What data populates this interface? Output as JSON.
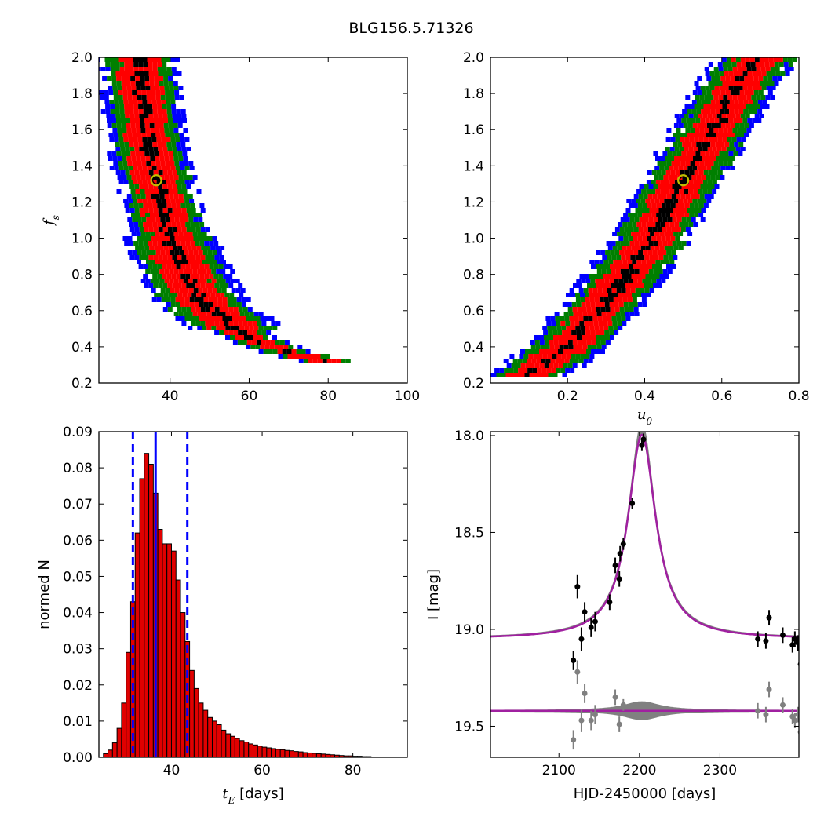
{
  "figure_title": "BLG156.5.71326",
  "colors": {
    "blue": "#0000ff",
    "green": "#007f00",
    "red": "#ff0000",
    "black": "#000000",
    "marker_edge": "#bfbf00",
    "bar_fill": "#e00000",
    "model": "#a020a0",
    "band": "#808080",
    "residual": "#808080"
  },
  "chart_data": [
    {
      "id": "fs_vs_tE",
      "type": "heatmap",
      "title": "",
      "xlabel": "",
      "ylabel": "f_s",
      "xlim": [
        22,
        100
      ],
      "ylim": [
        0.2,
        2.0
      ],
      "xticks": [
        40,
        60,
        80,
        100
      ],
      "yticks": [
        0.2,
        0.4,
        0.6,
        0.8,
        1.0,
        1.2,
        1.4,
        1.6,
        1.8,
        2.0
      ],
      "levels": [
        "blue",
        "green",
        "red",
        "black"
      ],
      "ridge": [
        [
          32,
          2.0
        ],
        [
          33,
          1.8
        ],
        [
          34,
          1.6
        ],
        [
          35.5,
          1.4
        ],
        [
          37,
          1.3
        ],
        [
          39,
          1.1
        ],
        [
          41,
          0.95
        ],
        [
          44,
          0.8
        ],
        [
          48,
          0.65
        ],
        [
          54,
          0.55
        ],
        [
          60,
          0.45
        ],
        [
          70,
          0.37
        ],
        [
          80,
          0.32
        ],
        [
          86,
          0.3
        ]
      ],
      "best_fit": {
        "x": 36.5,
        "y": 1.32
      }
    },
    {
      "id": "fs_vs_u0",
      "type": "heatmap",
      "title": "",
      "xlabel": "u_0",
      "ylabel": "",
      "xlim": [
        0.0,
        0.8
      ],
      "ylim": [
        0.2,
        2.0
      ],
      "xticks": [
        0.2,
        0.4,
        0.6,
        0.8
      ],
      "yticks": [
        0.2,
        0.4,
        0.6,
        0.8,
        1.0,
        1.2,
        1.4,
        1.6,
        1.8,
        2.0
      ],
      "levels": [
        "blue",
        "green",
        "red",
        "black"
      ],
      "ridge": [
        [
          0.08,
          0.22
        ],
        [
          0.14,
          0.3
        ],
        [
          0.2,
          0.4
        ],
        [
          0.26,
          0.55
        ],
        [
          0.32,
          0.7
        ],
        [
          0.38,
          0.88
        ],
        [
          0.43,
          1.05
        ],
        [
          0.47,
          1.2
        ],
        [
          0.51,
          1.35
        ],
        [
          0.55,
          1.5
        ],
        [
          0.59,
          1.65
        ],
        [
          0.63,
          1.8
        ],
        [
          0.66,
          1.9
        ],
        [
          0.7,
          2.0
        ]
      ],
      "best_fit": {
        "x": 0.5,
        "y": 1.32
      }
    },
    {
      "id": "tE_histogram",
      "type": "bar",
      "title": "",
      "xlabel": "t_E [days]",
      "ylabel": "normed N",
      "xlim": [
        24,
        92
      ],
      "ylim": [
        0.0,
        0.09
      ],
      "xticks": [
        40,
        60,
        80
      ],
      "yticks": [
        0.0,
        0.01,
        0.02,
        0.03,
        0.04,
        0.05,
        0.06,
        0.07,
        0.08,
        0.09
      ],
      "bin_width": 1,
      "bin_start": 25,
      "values": [
        0.001,
        0.002,
        0.004,
        0.008,
        0.015,
        0.029,
        0.043,
        0.062,
        0.077,
        0.084,
        0.081,
        0.073,
        0.063,
        0.059,
        0.059,
        0.057,
        0.049,
        0.04,
        0.032,
        0.024,
        0.019,
        0.015,
        0.013,
        0.011,
        0.01,
        0.009,
        0.0075,
        0.0065,
        0.0058,
        0.0052,
        0.0046,
        0.0042,
        0.0037,
        0.0034,
        0.0031,
        0.0028,
        0.0026,
        0.0024,
        0.0022,
        0.0021,
        0.0019,
        0.0018,
        0.0016,
        0.0015,
        0.0013,
        0.0012,
        0.0011,
        0.001,
        0.0009,
        0.0008,
        0.0007,
        0.0006,
        0.0005,
        0.0004,
        0.0004,
        0.0003,
        0.0003,
        0.0002,
        0.0002,
        0.0001,
        0.0001,
        0.0001,
        0.0001,
        0.0001,
        0.0001,
        0.0001,
        0.0001
      ],
      "median_line": 36.5,
      "interval_lines": [
        31.5,
        43.5
      ]
    },
    {
      "id": "light_curve",
      "type": "scatter",
      "title": "",
      "xlabel": "HJD-2450000 [days]",
      "ylabel": "I [mag]",
      "xlim": [
        2015,
        2398
      ],
      "ylim": [
        19.66,
        17.98
      ],
      "xticks": [
        2100,
        2200,
        2300
      ],
      "yticks": [
        18.0,
        18.5,
        19.0,
        19.5
      ],
      "model": {
        "t0": 2203,
        "baseline": 19.05,
        "peak": 17.98,
        "width": 21
      },
      "residual_offset": 19.42,
      "points": [
        [
          2118,
          19.16,
          0.05
        ],
        [
          2123,
          18.78,
          0.06
        ],
        [
          2128,
          19.05,
          0.06
        ],
        [
          2132,
          18.91,
          0.05
        ],
        [
          2140,
          18.99,
          0.05
        ],
        [
          2145,
          18.96,
          0.05
        ],
        [
          2163,
          18.86,
          0.04
        ],
        [
          2170,
          18.67,
          0.04
        ],
        [
          2175,
          18.74,
          0.04
        ],
        [
          2176,
          18.61,
          0.04
        ],
        [
          2180,
          18.56,
          0.03
        ],
        [
          2191,
          18.35,
          0.03
        ],
        [
          2203,
          18.05,
          0.03
        ],
        [
          2205,
          18.02,
          0.03
        ],
        [
          2347,
          19.05,
          0.04
        ],
        [
          2357,
          19.06,
          0.04
        ],
        [
          2361,
          18.94,
          0.04
        ],
        [
          2378,
          19.03,
          0.04
        ],
        [
          2390,
          19.08,
          0.04
        ],
        [
          2393,
          19.05,
          0.04
        ],
        [
          2397,
          19.07,
          0.04
        ],
        [
          2400,
          19.18,
          0.05
        ]
      ],
      "residuals": [
        [
          2118,
          19.57,
          0.05
        ],
        [
          2123,
          19.22,
          0.06
        ],
        [
          2128,
          19.47,
          0.06
        ],
        [
          2132,
          19.33,
          0.05
        ],
        [
          2140,
          19.47,
          0.05
        ],
        [
          2145,
          19.44,
          0.05
        ],
        [
          2170,
          19.35,
          0.04
        ],
        [
          2175,
          19.49,
          0.04
        ],
        [
          2180,
          19.39,
          0.03
        ],
        [
          2347,
          19.42,
          0.04
        ],
        [
          2357,
          19.44,
          0.04
        ],
        [
          2361,
          19.31,
          0.04
        ],
        [
          2378,
          19.39,
          0.04
        ],
        [
          2390,
          19.45,
          0.04
        ],
        [
          2393,
          19.47,
          0.04
        ],
        [
          2397,
          19.44,
          0.04
        ],
        [
          2400,
          19.53,
          0.05
        ]
      ]
    }
  ]
}
